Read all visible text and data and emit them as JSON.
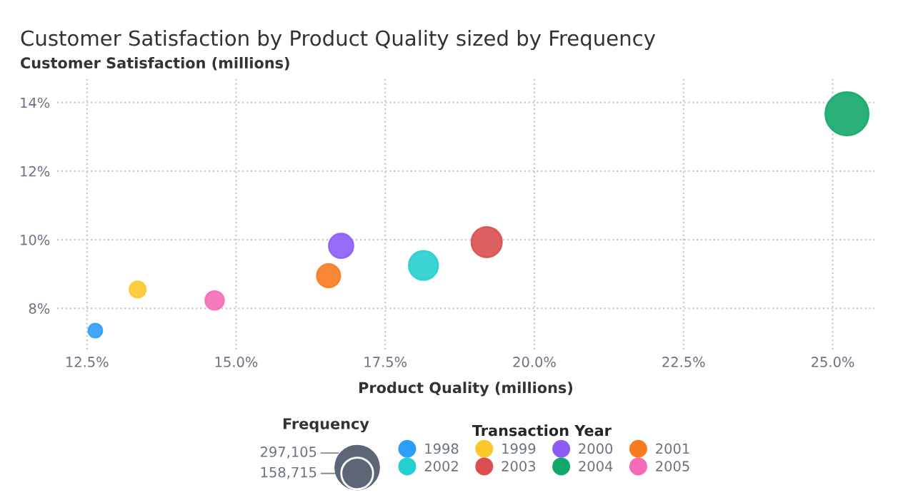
{
  "chart_data": {
    "type": "bubble",
    "title": "Customer Satisfaction by Product Quality sized by Frequency",
    "xlabel": "Product Quality (millions)",
    "ylabel": "Customer Satisfaction (millions)",
    "legend_title": "Transaction Year",
    "annotations": [
      "Frequency"
    ],
    "size_legend": [
      {
        "value": 297105,
        "label": "297,105"
      },
      {
        "value": 158715,
        "label": "158,715"
      }
    ],
    "series": [
      {
        "name": "1998",
        "color": "#2e9df7",
        "x": [
          12.64
        ],
        "values": [
          7.35
        ],
        "sizes": [
          31000
        ]
      },
      {
        "name": "1999",
        "color": "#fcc72c",
        "x": [
          13.35
        ],
        "values": [
          8.55
        ],
        "sizes": [
          42500
        ]
      },
      {
        "name": "2000",
        "color": "#8c5cf7",
        "x": [
          16.76
        ],
        "values": [
          9.82
        ],
        "sizes": [
          95700
        ]
      },
      {
        "name": "2001",
        "color": "#f97a1f",
        "x": [
          16.55
        ],
        "values": [
          8.95
        ],
        "sizes": [
          86800
        ]
      },
      {
        "name": "2002",
        "color": "#26cfcf",
        "x": [
          18.14
        ],
        "values": [
          9.25
        ],
        "sizes": [
          135600
        ]
      },
      {
        "name": "2003",
        "color": "#d94e4e",
        "x": [
          19.2
        ],
        "values": [
          9.93
        ],
        "sizes": [
          147000
        ]
      },
      {
        "name": "2004",
        "color": "#13a86b",
        "x": [
          25.24
        ],
        "values": [
          13.67
        ],
        "sizes": [
          297105
        ]
      },
      {
        "name": "2005",
        "color": "#f56bb8",
        "x": [
          14.64
        ],
        "values": [
          8.23
        ],
        "sizes": [
          55600
        ]
      }
    ],
    "xlim": [
      12.0,
      25.7
    ],
    "ylim": [
      6.8,
      14.7
    ],
    "xticks": [
      {
        "value": 12.5,
        "label": "12.5%"
      },
      {
        "value": 15,
        "label": "15.0%"
      },
      {
        "value": 17.5,
        "label": "17.5%"
      },
      {
        "value": 20,
        "label": "20.0%"
      },
      {
        "value": 22.5,
        "label": "22.5%"
      },
      {
        "value": 25,
        "label": "25.0%"
      }
    ],
    "yticks": [
      {
        "value": 8,
        "label": "8%"
      },
      {
        "value": 10,
        "label": "10%"
      },
      {
        "value": 12,
        "label": "12%"
      },
      {
        "value": 14,
        "label": "14%"
      }
    ],
    "grid": true,
    "legend": "bottom"
  }
}
